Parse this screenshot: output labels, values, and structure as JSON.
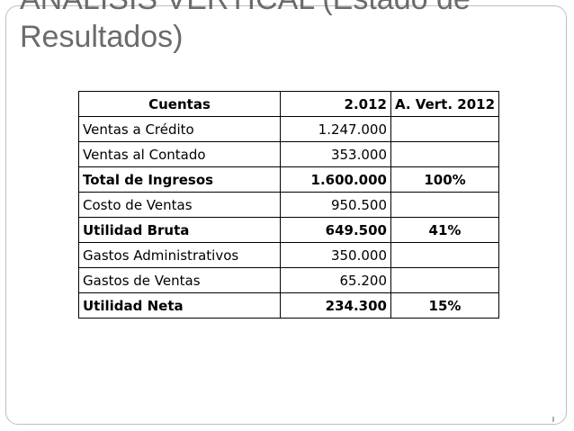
{
  "title": {
    "line1": "ANÁLISIS VERTICAL (Estado  de",
    "line2": "Resultados)"
  },
  "table": {
    "headers": [
      "Cuentas",
      "2.012",
      "A. Vert. 2012"
    ],
    "rows": [
      {
        "name": "Ventas a Crédito",
        "value": "1.247.000",
        "pct": ""
      },
      {
        "name": "Ventas al Contado",
        "value": "353.000",
        "pct": ""
      },
      {
        "name": "Total de Ingresos",
        "value": "1.600.000",
        "pct": "100%"
      },
      {
        "name": "Costo de Ventas",
        "value": "950.500",
        "pct": ""
      },
      {
        "name": "Utilidad Bruta",
        "value": "649.500",
        "pct": "41%"
      },
      {
        "name": "Gastos Administrativos",
        "value": "350.000",
        "pct": ""
      },
      {
        "name": "Gastos de Ventas",
        "value": "65.200",
        "pct": ""
      },
      {
        "name": "Utilidad Neta",
        "value": "234.300",
        "pct": "15%"
      }
    ]
  }
}
